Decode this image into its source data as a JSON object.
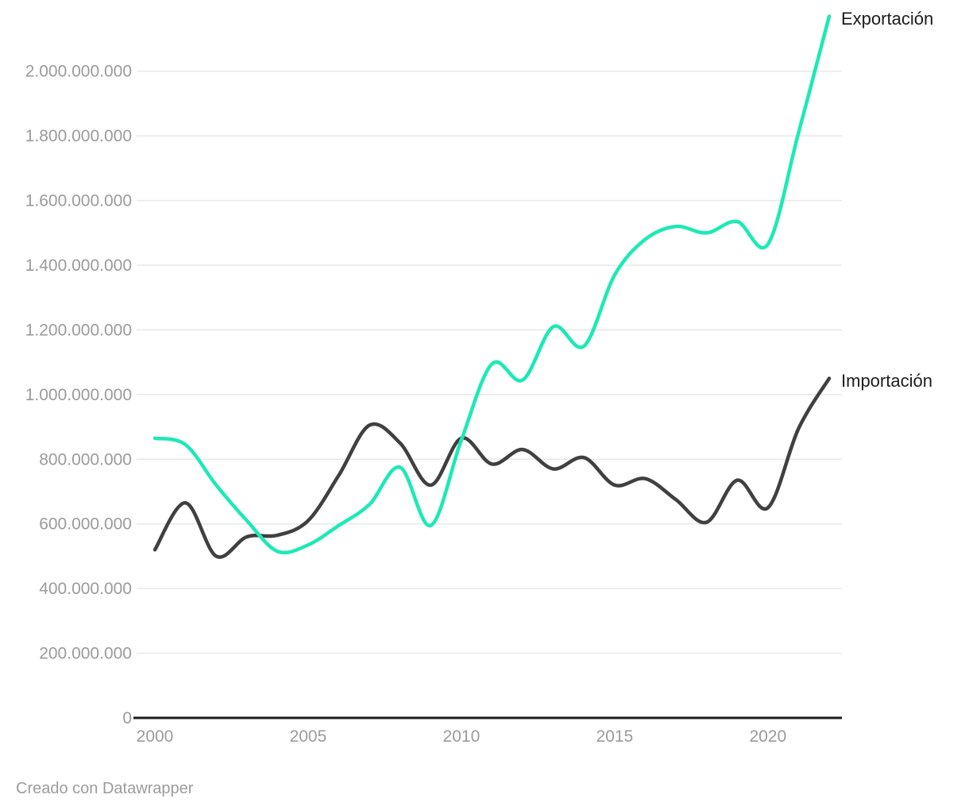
{
  "chart_data": {
    "type": "line",
    "title": "",
    "xlabel": "",
    "ylabel": "",
    "grid": true,
    "legend_position": "end-of-line",
    "xlim": [
      2000,
      2022
    ],
    "ylim": [
      0,
      2200000000
    ],
    "x": [
      2000,
      2001,
      2002,
      2003,
      2004,
      2005,
      2006,
      2007,
      2008,
      2009,
      2010,
      2011,
      2012,
      2013,
      2014,
      2015,
      2016,
      2017,
      2018,
      2019,
      2020,
      2021,
      2022
    ],
    "series": [
      {
        "name": "Exportación",
        "color": "#1de9b6",
        "values": [
          865000000,
          845000000,
          720000000,
          610000000,
          515000000,
          535000000,
          595000000,
          660000000,
          775000000,
          595000000,
          860000000,
          1095000000,
          1045000000,
          1210000000,
          1150000000,
          1370000000,
          1480000000,
          1520000000,
          1500000000,
          1535000000,
          1465000000,
          1810000000,
          2170000000
        ]
      },
      {
        "name": "Importación",
        "color": "#404040",
        "values": [
          520000000,
          665000000,
          500000000,
          560000000,
          565000000,
          610000000,
          750000000,
          905000000,
          850000000,
          720000000,
          865000000,
          785000000,
          830000000,
          770000000,
          805000000,
          720000000,
          740000000,
          675000000,
          605000000,
          735000000,
          650000000,
          895000000,
          1050000000
        ]
      }
    ],
    "x_ticks": [
      {
        "value": 2000,
        "label": "2000"
      },
      {
        "value": 2005,
        "label": "2005"
      },
      {
        "value": 2010,
        "label": "2010"
      },
      {
        "value": 2015,
        "label": "2015"
      },
      {
        "value": 2020,
        "label": "2020"
      }
    ],
    "y_ticks": [
      {
        "value": 0,
        "label": "0"
      },
      {
        "value": 200000000,
        "label": "200.000.000"
      },
      {
        "value": 400000000,
        "label": "400.000.000"
      },
      {
        "value": 600000000,
        "label": "600.000.000"
      },
      {
        "value": 800000000,
        "label": "800.000.000"
      },
      {
        "value": 1000000000,
        "label": "1.000.000.000"
      },
      {
        "value": 1200000000,
        "label": "1.200.000.000"
      },
      {
        "value": 1400000000,
        "label": "1.400.000.000"
      },
      {
        "value": 1600000000,
        "label": "1.600.000.000"
      },
      {
        "value": 1800000000,
        "label": "1.800.000.000"
      },
      {
        "value": 2000000000,
        "label": "2.000.000.000"
      }
    ],
    "colors": {
      "grid_line": "#e8e8e8",
      "axis_line": "#1a1a1a",
      "tick_text": "#9b9b9b",
      "label_text": "#1d1d1d"
    }
  },
  "footer": {
    "credit": "Creado con Datawrapper"
  }
}
